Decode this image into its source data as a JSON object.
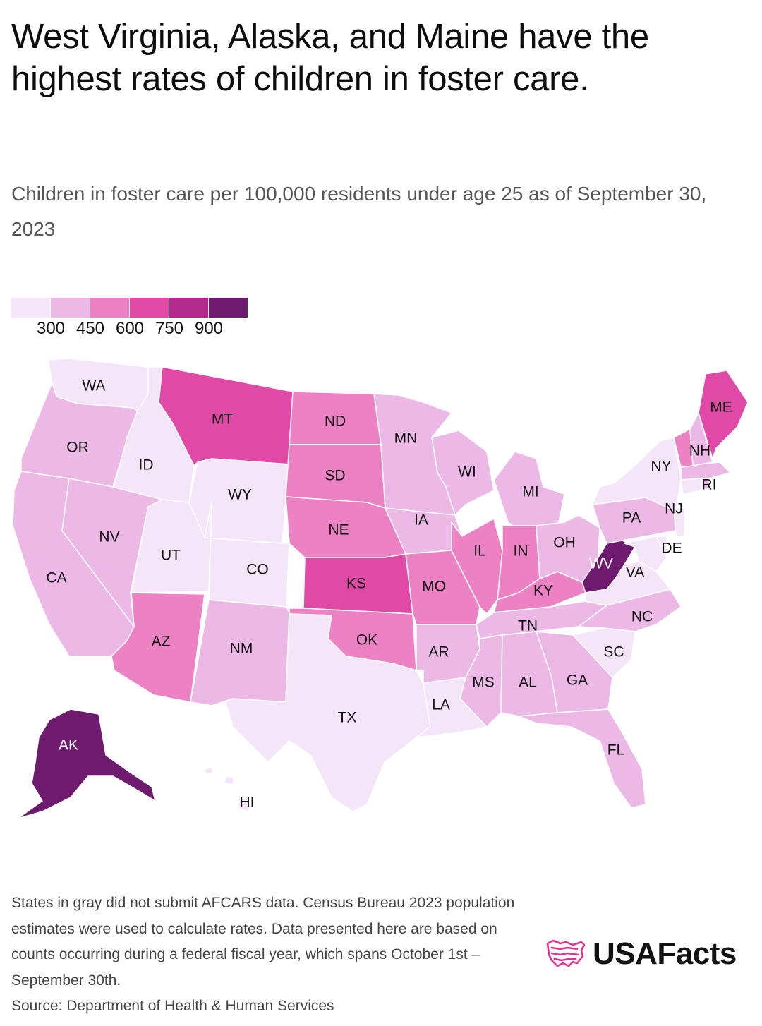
{
  "title": "West Virginia, Alaska, and Maine have the highest rates of children in foster care.",
  "subtitle": "Children in foster care per 100,000 residents under age 25 as of September 30, 2023",
  "legend": {
    "colors": [
      "#f4e6f8",
      "#ecb8e6",
      "#ec82c4",
      "#e04aa6",
      "#b22a8c",
      "#6e1a6e"
    ],
    "ticks": [
      "300",
      "450",
      "600",
      "750",
      "900"
    ]
  },
  "map_data": {
    "type": "choropleth",
    "value_label": "Children in foster care per 100,000 residents under age 25",
    "bins": [
      {
        "range": "<300",
        "color": "#f4e6f8"
      },
      {
        "range": "300-450",
        "color": "#ecb8e6"
      },
      {
        "range": "450-600",
        "color": "#ec82c4"
      },
      {
        "range": "600-750",
        "color": "#e04aa6"
      },
      {
        "range": "750-900",
        "color": "#b22a8c"
      },
      {
        "range": ">900",
        "color": "#6e1a6e"
      }
    ],
    "states": [
      {
        "abbr": "WA",
        "bin": 0
      },
      {
        "abbr": "OR",
        "bin": 1
      },
      {
        "abbr": "CA",
        "bin": 1
      },
      {
        "abbr": "ID",
        "bin": 0
      },
      {
        "abbr": "NV",
        "bin": 1
      },
      {
        "abbr": "UT",
        "bin": 0
      },
      {
        "abbr": "AZ",
        "bin": 2
      },
      {
        "abbr": "MT",
        "bin": 3
      },
      {
        "abbr": "WY",
        "bin": 0
      },
      {
        "abbr": "CO",
        "bin": 0
      },
      {
        "abbr": "NM",
        "bin": 1
      },
      {
        "abbr": "ND",
        "bin": 2
      },
      {
        "abbr": "SD",
        "bin": 2
      },
      {
        "abbr": "NE",
        "bin": 2
      },
      {
        "abbr": "KS",
        "bin": 3
      },
      {
        "abbr": "OK",
        "bin": 2
      },
      {
        "abbr": "TX",
        "bin": 0
      },
      {
        "abbr": "MN",
        "bin": 1
      },
      {
        "abbr": "IA",
        "bin": 1
      },
      {
        "abbr": "MO",
        "bin": 2
      },
      {
        "abbr": "AR",
        "bin": 1
      },
      {
        "abbr": "LA",
        "bin": 0
      },
      {
        "abbr": "WI",
        "bin": 1
      },
      {
        "abbr": "IL",
        "bin": 2
      },
      {
        "abbr": "MI",
        "bin": 1
      },
      {
        "abbr": "IN",
        "bin": 2
      },
      {
        "abbr": "KY",
        "bin": 2
      },
      {
        "abbr": "TN",
        "bin": 1
      },
      {
        "abbr": "MS",
        "bin": 1
      },
      {
        "abbr": "AL",
        "bin": 1
      },
      {
        "abbr": "OH",
        "bin": 1
      },
      {
        "abbr": "WV",
        "bin": 5
      },
      {
        "abbr": "VA",
        "bin": 0
      },
      {
        "abbr": "NC",
        "bin": 1
      },
      {
        "abbr": "SC",
        "bin": 0
      },
      {
        "abbr": "GA",
        "bin": 1
      },
      {
        "abbr": "FL",
        "bin": 1
      },
      {
        "abbr": "PA",
        "bin": 1
      },
      {
        "abbr": "NY",
        "bin": 0
      },
      {
        "abbr": "NJ",
        "bin": 0
      },
      {
        "abbr": "DE",
        "bin": 0
      },
      {
        "abbr": "MD",
        "bin": 0
      },
      {
        "abbr": "CT",
        "bin": 0
      },
      {
        "abbr": "RI",
        "bin": 1
      },
      {
        "abbr": "MA",
        "bin": 1
      },
      {
        "abbr": "VT",
        "bin": 2
      },
      {
        "abbr": "NH",
        "bin": 1
      },
      {
        "abbr": "ME",
        "bin": 3
      },
      {
        "abbr": "AK",
        "bin": 5
      },
      {
        "abbr": "HI",
        "bin": 0
      }
    ]
  },
  "footnote": "States in gray did not submit AFCARS data. Census Bureau 2023 population estimates were used to calculate rates. Data presented here are based on counts occurring during a federal fiscal year, which spans October 1st – September 30th.",
  "source": "Source: Department of Health & Human Services",
  "brand": {
    "name": "USAFacts",
    "icon": "usafacts-flag-icon",
    "color": "#e0338f"
  }
}
